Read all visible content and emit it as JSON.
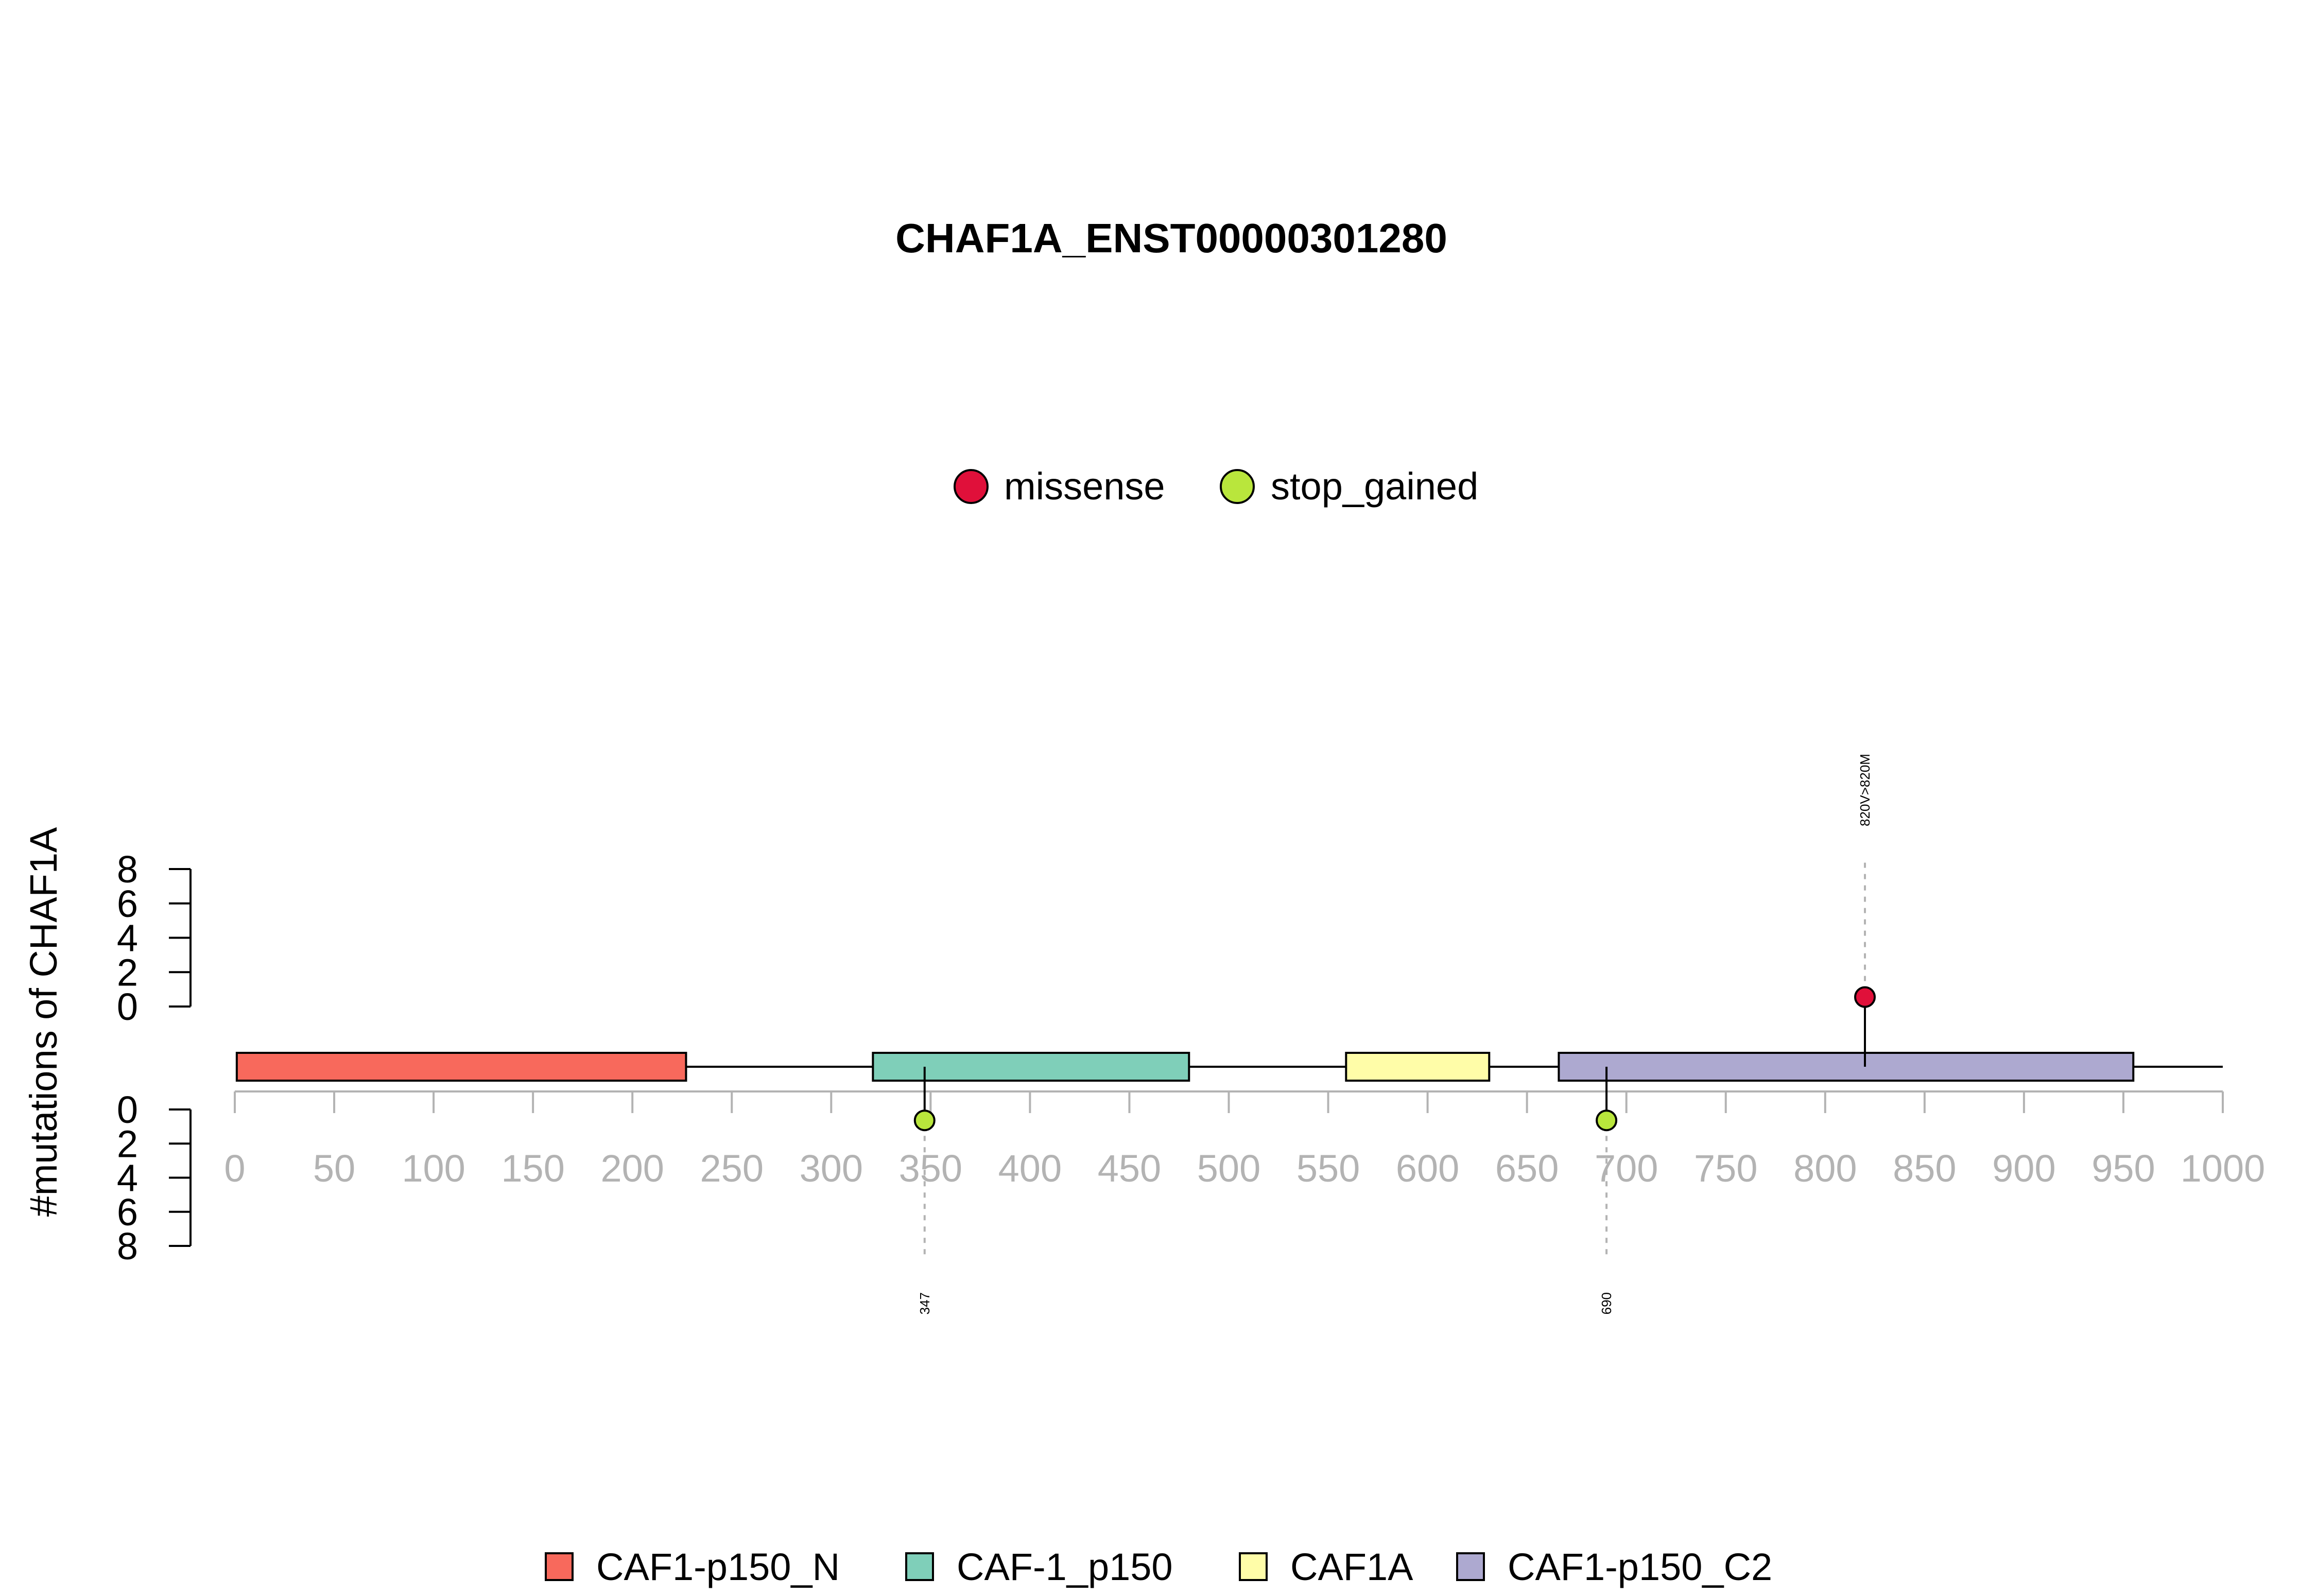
{
  "chart_data": {
    "type": "lollipop",
    "title": "CHAF1A_ENST00000301280",
    "ylabel": "#mutations of CHAF1A",
    "x_range": [
      0,
      1000
    ],
    "x_ticks": [
      0,
      50,
      100,
      150,
      200,
      250,
      300,
      350,
      400,
      450,
      500,
      550,
      600,
      650,
      700,
      750,
      800,
      850,
      900,
      950,
      1000
    ],
    "y_ticks_top": [
      0,
      2,
      4,
      6,
      8
    ],
    "y_ticks_bottom": [
      0,
      2,
      4,
      6,
      8
    ],
    "mutation_legend": [
      {
        "label": "missense",
        "color": "#E0103A"
      },
      {
        "label": "stop_gained",
        "color": "#B9E63C"
      }
    ],
    "domains": [
      {
        "name": "CAF1-p150_N",
        "start": 1,
        "end": 227,
        "color": "#F8695C"
      },
      {
        "name": "CAF-1_p150",
        "start": 321,
        "end": 480,
        "color": "#7FCFB9"
      },
      {
        "name": "CAF1A",
        "start": 559,
        "end": 631,
        "color": "#FFFDA8"
      },
      {
        "name": "CAF1-p150_C2",
        "start": 666,
        "end": 955,
        "color": "#ADA9D0"
      }
    ],
    "protein_length": 1000,
    "mutations": [
      {
        "position": 820,
        "count": 1,
        "type": "missense",
        "side": "top",
        "label": "820V>820M"
      },
      {
        "position": 347,
        "count": 1,
        "type": "stop_gained",
        "side": "bottom",
        "label": "347"
      },
      {
        "position": 690,
        "count": 1,
        "type": "stop_gained",
        "side": "bottom",
        "label": "690"
      }
    ]
  }
}
